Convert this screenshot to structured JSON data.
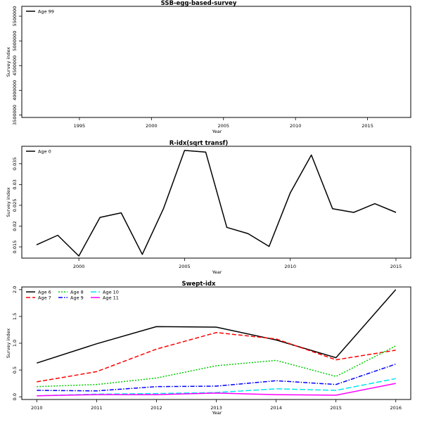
{
  "chart_data": [
    {
      "type": "line",
      "title": "SSB-egg-based-survey",
      "xlabel": "Year",
      "ylabel": "Survey index",
      "xlim": [
        1991,
        2018
      ],
      "ylim": [
        3450000,
        5700000
      ],
      "xticks": [
        1995,
        2000,
        2005,
        2010,
        2015
      ],
      "yticks": [
        3500000,
        4000000,
        4500000,
        5000000,
        5500000
      ],
      "legend_position": "top-left",
      "series": [
        {
          "name": "Age 99",
          "color": "#000000",
          "dash": "",
          "x": [],
          "y": []
        }
      ]
    },
    {
      "type": "line",
      "title": "R-idx(sqrt transf)",
      "xlabel": "Year",
      "ylabel": "Survey index",
      "xlim": [
        1997.3,
        2015.7
      ],
      "ylim": [
        0.0123,
        0.0392
      ],
      "xticks": [
        2000,
        2005,
        2010,
        2015
      ],
      "yticks": [
        0.015,
        0.02,
        0.025,
        0.03,
        0.035
      ],
      "legend_position": "top-left",
      "series": [
        {
          "name": "Age 0",
          "color": "#000000",
          "dash": "",
          "x": [
            1998,
            1999,
            2000,
            2001,
            2002,
            2003,
            2004,
            2005,
            2006,
            2007,
            2008,
            2009,
            2010,
            2011,
            2012,
            2013,
            2014,
            2015
          ],
          "y": [
            0.0155,
            0.0178,
            0.0128,
            0.0221,
            0.0232,
            0.0132,
            0.0242,
            0.0382,
            0.0378,
            0.0197,
            0.0182,
            0.0151,
            0.028,
            0.0371,
            0.0242,
            0.0233,
            0.0254,
            0.0233
          ]
        }
      ]
    },
    {
      "type": "line",
      "title": "Swept-idx",
      "xlabel": "Year",
      "ylabel": "Survey index",
      "xlim": [
        2009.75,
        2016.25
      ],
      "ylim": [
        -0.05,
        2.05
      ],
      "xticks": [
        2010,
        2011,
        2012,
        2013,
        2014,
        2015,
        2016
      ],
      "yticks": [
        0,
        0.5,
        1,
        1.5,
        2
      ],
      "ytick_labels": [
        "0.0",
        "0.5",
        "1.0",
        "1.5",
        "2.0"
      ],
      "legend_position": "top-left",
      "series": [
        {
          "name": "Age 6",
          "color": "#000000",
          "dash": "",
          "x": [
            2010,
            2011,
            2012,
            2013,
            2014,
            2015,
            2016
          ],
          "y": [
            0.63,
            0.99,
            1.31,
            1.3,
            1.06,
            0.73,
            2.0
          ]
        },
        {
          "name": "Age 7",
          "color": "#ff0000",
          "dash": "6,3",
          "x": [
            2010,
            2011,
            2012,
            2013,
            2014,
            2015,
            2016
          ],
          "y": [
            0.28,
            0.47,
            0.89,
            1.2,
            1.08,
            0.69,
            0.87
          ]
        },
        {
          "name": "Age 8",
          "color": "#00cd00",
          "dash": "2,2",
          "x": [
            2010,
            2011,
            2012,
            2013,
            2014,
            2015,
            2016
          ],
          "y": [
            0.19,
            0.23,
            0.35,
            0.58,
            0.68,
            0.38,
            0.95
          ]
        },
        {
          "name": "Age 9",
          "color": "#0000ff",
          "dash": "6,2,1.5,2",
          "x": [
            2010,
            2011,
            2012,
            2013,
            2014,
            2015,
            2016
          ],
          "y": [
            0.12,
            0.11,
            0.19,
            0.2,
            0.3,
            0.23,
            0.61
          ]
        },
        {
          "name": "Age 10",
          "color": "#00e5ee",
          "dash": "8,3",
          "x": [
            2010,
            2011,
            2012,
            2013,
            2014,
            2015,
            2016
          ],
          "y": [
            0.02,
            0.05,
            0.06,
            0.08,
            0.15,
            0.12,
            0.34
          ]
        },
        {
          "name": "Age 11",
          "color": "#ff00ff",
          "dash": "",
          "x": [
            2010,
            2011,
            2012,
            2013,
            2014,
            2015,
            2016
          ],
          "y": [
            0.02,
            0.04,
            0.04,
            0.07,
            0.04,
            0.03,
            0.25
          ]
        }
      ]
    }
  ]
}
